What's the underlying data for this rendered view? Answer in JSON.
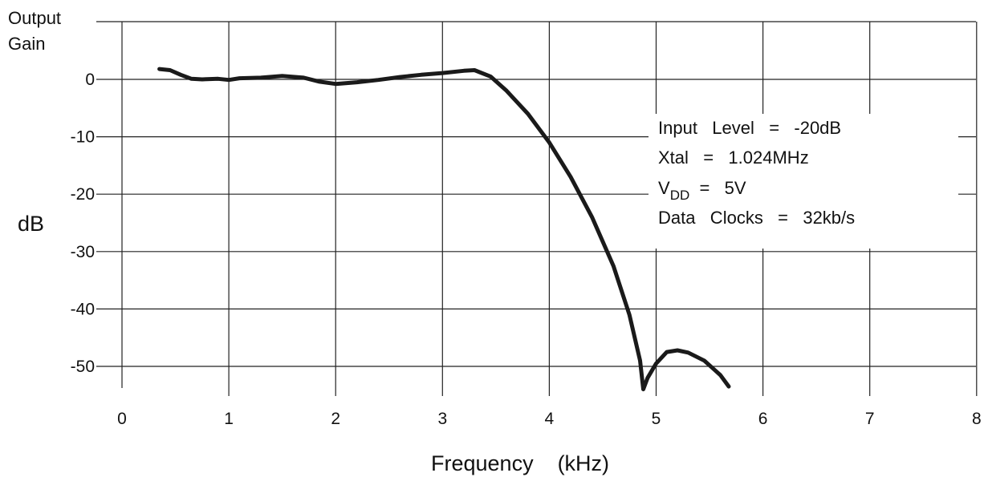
{
  "chart_data": {
    "type": "line",
    "ylabel_top": [
      "Output",
      "Gain"
    ],
    "ylabel": "dB",
    "xlabel": "Frequency    (kHz)",
    "xlim": [
      0,
      8
    ],
    "ylim": [
      -55,
      10
    ],
    "grid": true,
    "x_ticks": [
      0,
      1,
      2,
      3,
      4,
      5,
      6,
      7,
      8
    ],
    "y_ticks": [
      0,
      -10,
      -20,
      -30,
      -40,
      -50
    ],
    "series": [
      {
        "x": [
          0.35,
          0.45,
          0.55,
          0.65,
          0.75,
          0.9,
          1.0,
          1.1,
          1.3,
          1.5,
          1.7,
          1.85,
          2.0,
          2.2,
          2.4,
          2.6,
          2.8,
          3.0,
          3.2,
          3.3,
          3.45,
          3.6,
          3.8,
          4.0,
          4.2,
          4.4,
          4.6,
          4.75,
          4.85,
          4.88,
          4.92,
          5.0,
          5.1,
          5.2,
          5.3,
          5.45,
          5.6,
          5.68
        ],
        "y": [
          1.8,
          1.6,
          0.8,
          0.1,
          0.0,
          0.1,
          -0.1,
          0.2,
          0.3,
          0.6,
          0.3,
          -0.4,
          -0.8,
          -0.5,
          -0.1,
          0.4,
          0.8,
          1.1,
          1.5,
          1.6,
          0.5,
          -2.0,
          -6.0,
          -11.0,
          -17.0,
          -24.0,
          -32.5,
          -41.0,
          -49.0,
          -54.0,
          -52.0,
          -49.5,
          -47.5,
          -47.2,
          -47.6,
          -49.0,
          -51.5,
          -53.5
        ]
      }
    ],
    "annotations": {
      "input_level": "Input   Level   =   -20dB",
      "xtal": "Xtal   =   1.024MHz",
      "vdd_prefix": "V",
      "vdd_sub": "DD",
      "vdd_rest": "  =   5V",
      "data_clocks": "Data   Clocks   =   32kb/s"
    }
  }
}
